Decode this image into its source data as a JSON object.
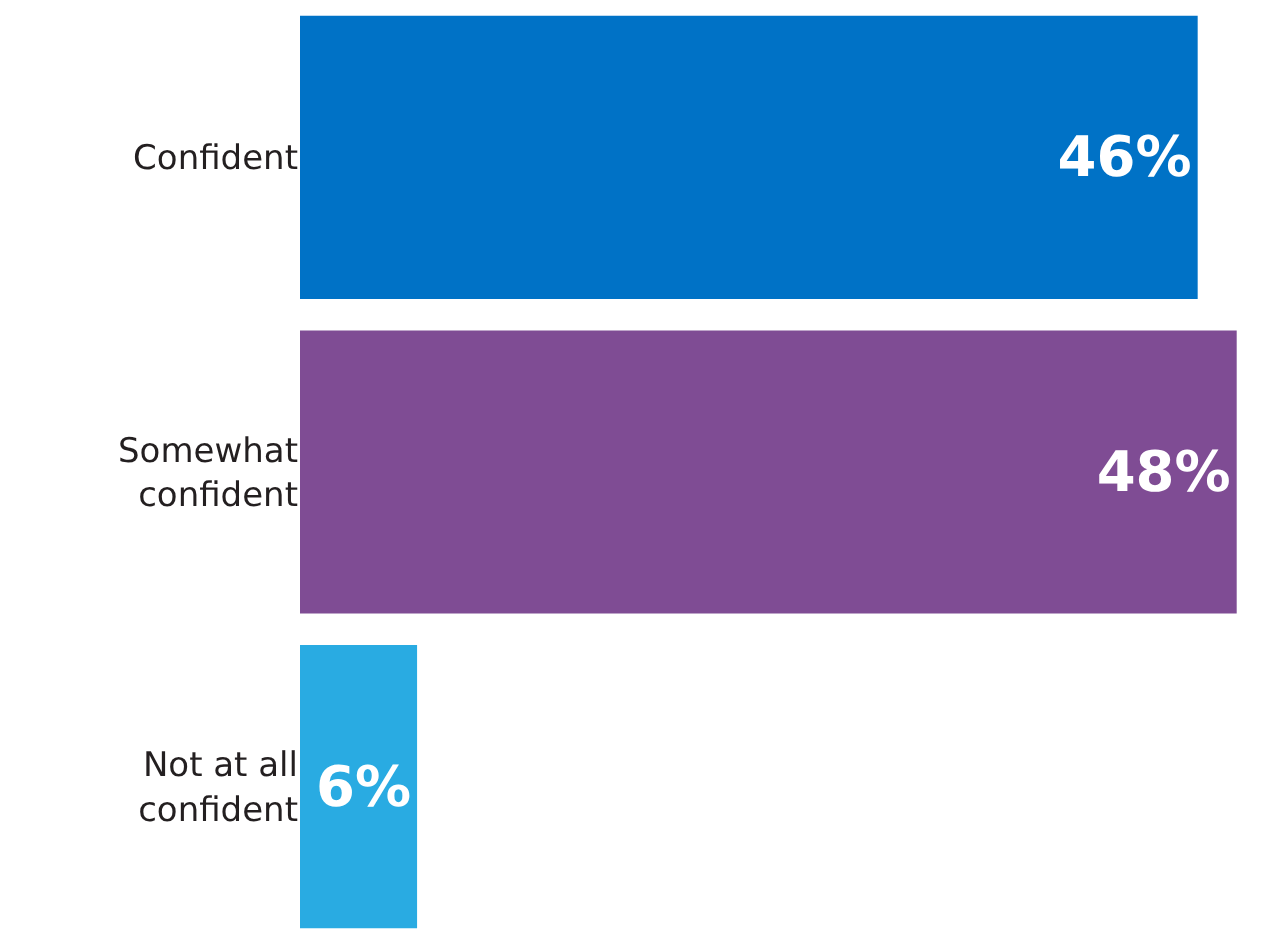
{
  "chart_data": {
    "type": "bar",
    "orientation": "horizontal",
    "categories": [
      "Confident",
      "Somewhat\nconfident",
      "Not at all\nconfident"
    ],
    "values": [
      46,
      48,
      6
    ],
    "colors": [
      "#0072c6",
      "#7f4c94",
      "#29abe2"
    ],
    "value_labels": [
      "46%",
      "48%",
      "6%"
    ]
  }
}
